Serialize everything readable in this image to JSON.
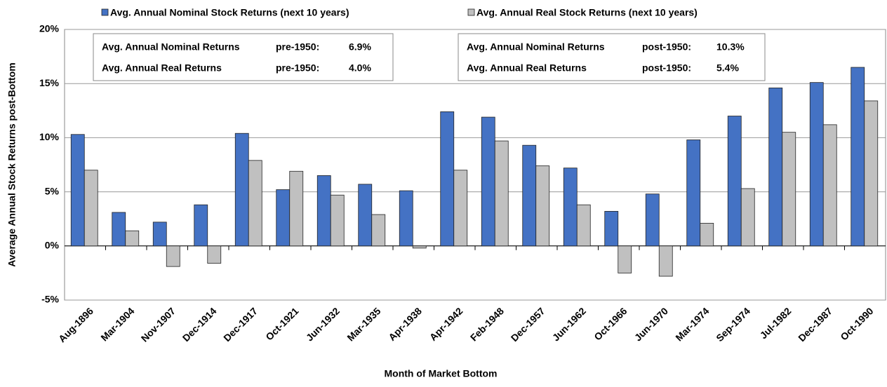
{
  "chart_data": {
    "type": "bar",
    "y_axis_label": "Average Annual Stock Returns post-Bottom",
    "x_axis_label": "Month of Market Bottom",
    "categories": [
      "Aug-1896",
      "Mar-1904",
      "Nov-1907",
      "Dec-1914",
      "Dec-1917",
      "Oct-1921",
      "Jun-1932",
      "Mar-1935",
      "Apr-1938",
      "Apr-1942",
      "Feb-1948",
      "Dec-1957",
      "Jun-1962",
      "Oct-1966",
      "Jun-1970",
      "Mar-1974",
      "Sep-1974",
      "Jul-1982",
      "Dec-1987",
      "Oct-1990"
    ],
    "series": [
      {
        "name": "Avg. Annual Nominal Stock Returns (next 10 years)",
        "color": "#4472c4",
        "values": [
          10.3,
          3.1,
          2.2,
          3.8,
          10.4,
          5.2,
          6.5,
          5.7,
          5.1,
          12.4,
          11.9,
          9.3,
          7.2,
          3.2,
          4.8,
          9.8,
          12.0,
          14.6,
          15.1,
          16.5
        ]
      },
      {
        "name": "Avg. Annual Real Stock Returns (next 10 years)",
        "color": "#c0c0c0",
        "values": [
          7.0,
          1.4,
          -1.9,
          -1.6,
          7.9,
          6.9,
          4.7,
          2.9,
          -0.2,
          7.0,
          9.7,
          7.4,
          3.8,
          -2.5,
          -2.8,
          2.1,
          5.3,
          10.5,
          11.2,
          13.4
        ]
      }
    ],
    "ylim": [
      -5,
      20
    ],
    "yticks": [
      {
        "value": -5,
        "label": "-5%"
      },
      {
        "value": 0,
        "label": "0%"
      },
      {
        "value": 5,
        "label": "5%"
      },
      {
        "value": 10,
        "label": "10%"
      },
      {
        "value": 15,
        "label": "15%"
      },
      {
        "value": 20,
        "label": "20%"
      }
    ],
    "grid": true,
    "annotations": [
      {
        "rows": [
          [
            "Avg. Annual Nominal Returns",
            "pre-1950:",
            "6.9%"
          ],
          [
            "Avg. Annual Real Returns",
            "pre-1950:",
            "4.0%"
          ]
        ]
      },
      {
        "rows": [
          [
            "Avg. Annual Nominal Returns",
            "post-1950:",
            "10.3%"
          ],
          [
            "Avg. Annual Real Returns",
            "post-1950:",
            "5.4%"
          ]
        ]
      }
    ]
  }
}
